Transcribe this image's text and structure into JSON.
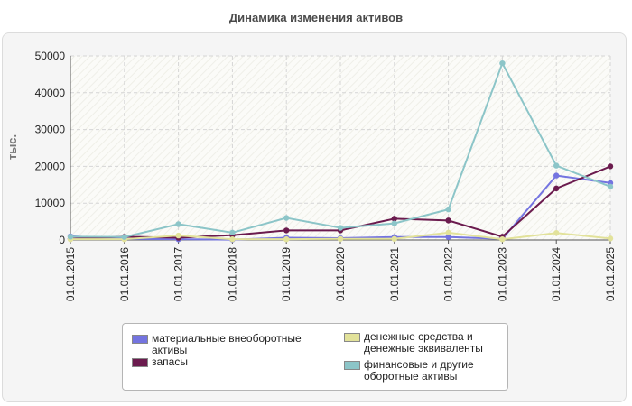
{
  "page": {
    "title": "Динамика изменения активов"
  },
  "chart_data": {
    "type": "line",
    "title": "Динамика изменения активов",
    "ylabel": "тыс.",
    "xlabel": "",
    "ylim": [
      0,
      50000
    ],
    "yticks": [
      0,
      10000,
      20000,
      30000,
      40000,
      50000
    ],
    "grid": true,
    "legend_position": "bottom",
    "categories": [
      "01.01.2015",
      "01.01.2016",
      "01.01.2017",
      "01.01.2018",
      "01.01.2019",
      "01.01.2020",
      "01.01.2021",
      "01.01.2022",
      "01.01.2023",
      "01.01.2024",
      "01.01.2025"
    ],
    "series": [
      {
        "name": "материальные внеоборотные активы",
        "color": "#7474e0",
        "values": [
          1000,
          300,
          200,
          100,
          600,
          500,
          800,
          800,
          300,
          17500,
          15500
        ]
      },
      {
        "name": "запасы",
        "color": "#6b1b4e",
        "values": [
          300,
          900,
          600,
          1300,
          2600,
          2600,
          5800,
          5300,
          900,
          14000,
          20000
        ]
      },
      {
        "name": "денежные средства и денежные эквиваленты",
        "color": "#e2e29a",
        "values": [
          200,
          200,
          1200,
          200,
          200,
          300,
          300,
          2000,
          200,
          1900,
          400
        ]
      },
      {
        "name": "финансовые и другие оборотные активы",
        "color": "#8cc5c8",
        "values": [
          900,
          800,
          4300,
          2000,
          6000,
          3300,
          4500,
          8300,
          48000,
          20200,
          14500
        ]
      }
    ]
  }
}
